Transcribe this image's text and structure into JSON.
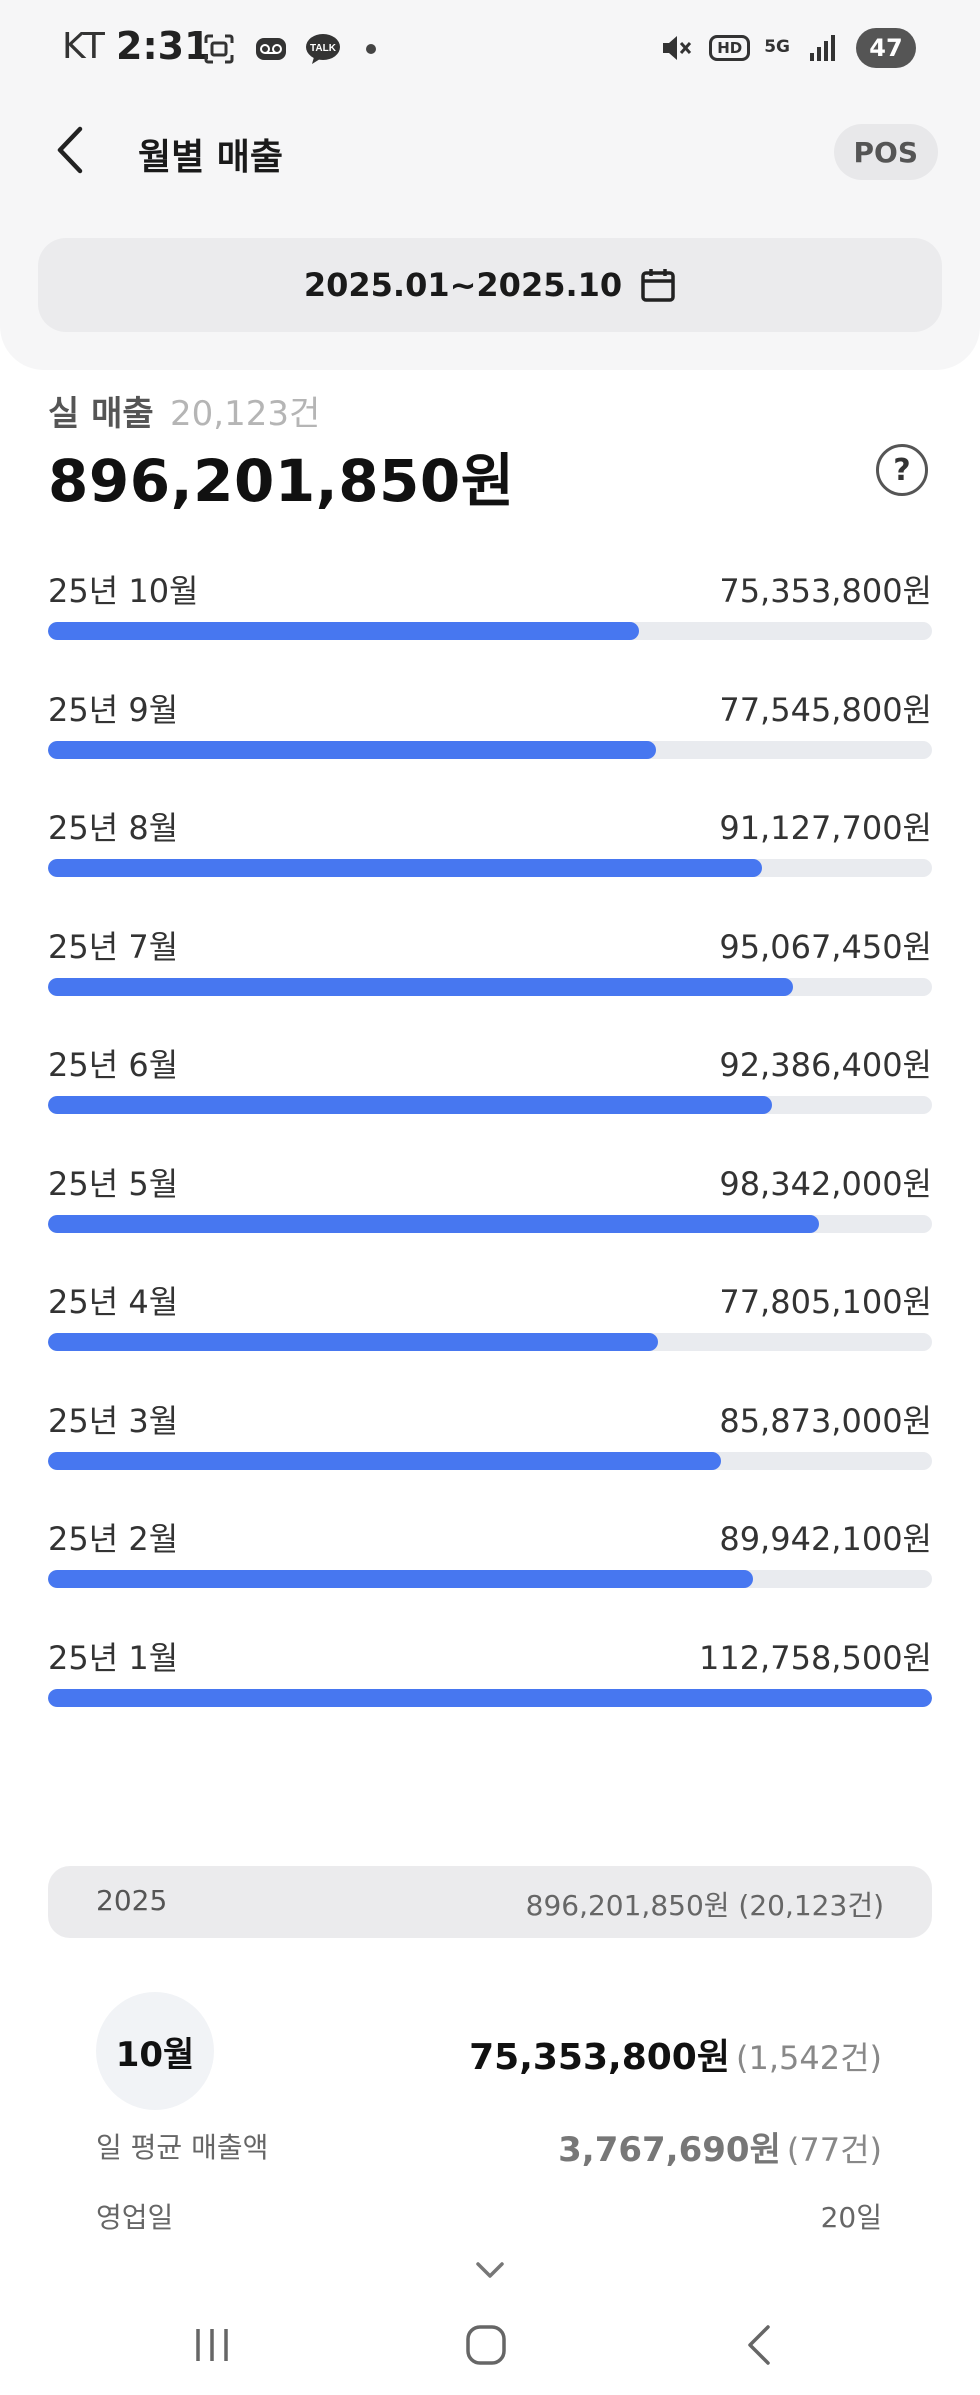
{
  "status_bar": {
    "carrier": "KT",
    "time": "2:31",
    "icons_left": [
      "screenshot-icon",
      "voicemail-icon",
      "talk-icon"
    ],
    "talk_text": "TALK",
    "hd_text": "HD",
    "network_text": "5G",
    "battery": "47"
  },
  "header": {
    "title": "월별 매출",
    "pos_label": "POS"
  },
  "date_range": {
    "text": "2025.01~2025.10"
  },
  "summary": {
    "label": "실 매출",
    "count": "20,123건",
    "total": "896,201,850원",
    "help": "?"
  },
  "months": [
    {
      "label": "25년 10월",
      "value": "75,353,800원",
      "amount": 75353800
    },
    {
      "label": "25년 9월",
      "value": "77,545,800원",
      "amount": 77545800
    },
    {
      "label": "25년 8월",
      "value": "91,127,700원",
      "amount": 91127700
    },
    {
      "label": "25년 7월",
      "value": "95,067,450원",
      "amount": 95067450
    },
    {
      "label": "25년 6월",
      "value": "92,386,400원",
      "amount": 92386400
    },
    {
      "label": "25년 5월",
      "value": "98,342,000원",
      "amount": 98342000
    },
    {
      "label": "25년 4월",
      "value": "77,805,100원",
      "amount": 77805100
    },
    {
      "label": "25년 3월",
      "value": "85,873,000원",
      "amount": 85873000
    },
    {
      "label": "25년 2월",
      "value": "89,942,100원",
      "amount": 89942100
    },
    {
      "label": "25년 1월",
      "value": "112,758,500원",
      "amount": 112758500
    }
  ],
  "colors": {
    "bar": "#4777f0",
    "track": "#e9ebef"
  },
  "year_summary": {
    "year": "2025",
    "value": "896,201,850원 (20,123건)"
  },
  "detail": {
    "month": "10월",
    "amount": "75,353,800원",
    "count": "(1,542건)",
    "avg_label": "일 평균 매출액",
    "avg_amount": "3,767,690원",
    "avg_count": "(77건)",
    "biz_days_label": "영업일",
    "biz_days_value": "20일"
  }
}
